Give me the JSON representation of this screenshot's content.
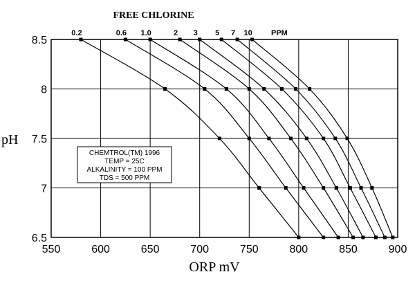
{
  "chart_data": {
    "type": "line",
    "title": "FREE CHLORINE",
    "xlabel": "ORP mV",
    "ylabel": "pH",
    "xlim": [
      550,
      900
    ],
    "ylim": [
      6.5,
      8.5
    ],
    "x_ticks": [
      "550",
      "600",
      "650",
      "700",
      "750",
      "800",
      "850",
      "900"
    ],
    "y_ticks": [
      "6.5",
      "7",
      "7.5",
      "8",
      "8.5"
    ],
    "series_unit_label": "PPM",
    "grid": true,
    "annotation": [
      "CHEMTROL(TM) 1996",
      "TEMP = 25C",
      "ALKALINITY = 100 PPM",
      "TDS = 500 PPM"
    ],
    "series": [
      {
        "name": "0.2",
        "points": [
          [
            580,
            8.5
          ],
          [
            665,
            8.0
          ],
          [
            720,
            7.5
          ],
          [
            760,
            7.0
          ],
          [
            800,
            6.5
          ]
        ]
      },
      {
        "name": "0.6",
        "points": [
          [
            625,
            8.5
          ],
          [
            705,
            8.0
          ],
          [
            750,
            7.5
          ],
          [
            787,
            7.0
          ],
          [
            825,
            6.5
          ]
        ]
      },
      {
        "name": "1.0",
        "points": [
          [
            650,
            8.5
          ],
          [
            727,
            8.0
          ],
          [
            770,
            7.5
          ],
          [
            805,
            7.0
          ],
          [
            840,
            6.5
          ]
        ]
      },
      {
        "name": "2",
        "points": [
          [
            680,
            8.5
          ],
          [
            750,
            8.0
          ],
          [
            792,
            7.5
          ],
          [
            825,
            7.0
          ],
          [
            855,
            6.5
          ]
        ]
      },
      {
        "name": "3",
        "points": [
          [
            700,
            8.5
          ],
          [
            765,
            8.0
          ],
          [
            808,
            7.5
          ],
          [
            838,
            7.0
          ],
          [
            865,
            6.5
          ]
        ]
      },
      {
        "name": "5",
        "points": [
          [
            722,
            8.5
          ],
          [
            783,
            8.0
          ],
          [
            825,
            7.5
          ],
          [
            852,
            7.0
          ],
          [
            878,
            6.5
          ]
        ]
      },
      {
        "name": "7",
        "points": [
          [
            738,
            8.5
          ],
          [
            797,
            8.0
          ],
          [
            837,
            7.5
          ],
          [
            863,
            7.0
          ],
          [
            887,
            6.5
          ]
        ]
      },
      {
        "name": "10",
        "points": [
          [
            753,
            8.5
          ],
          [
            811,
            8.0
          ],
          [
            849,
            7.5
          ],
          [
            874,
            7.0
          ],
          [
            895,
            6.5
          ]
        ]
      }
    ]
  }
}
